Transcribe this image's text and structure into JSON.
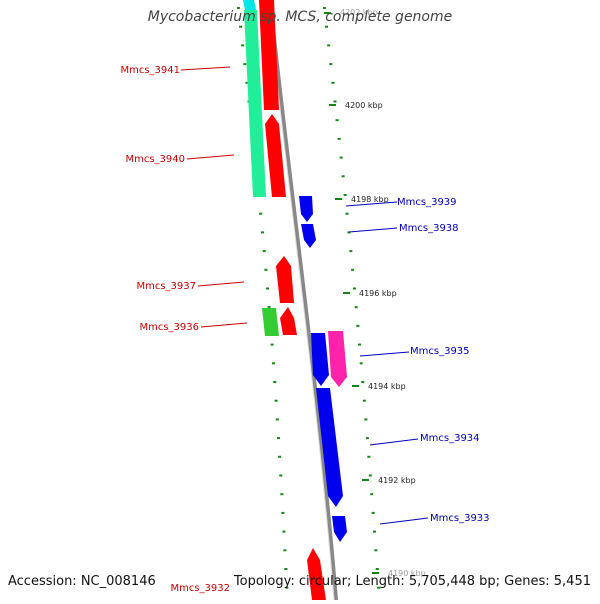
{
  "title": "Mycobacterium sp. MCS, complete genome",
  "accession_text": "Accession: NC_008146",
  "summary_text": "Topology: circular; Length: 5,705,448 bp; Genes: 5,451",
  "colors": {
    "forward_gene": "#ff0000",
    "reverse_gene": "#0000ee",
    "forward_label": "#cc0000",
    "reverse_label": "#0000bb",
    "cds_teal": "#22ee99",
    "cds_cyan": "#00e5e5",
    "cds_green": "#33cc33",
    "cds_pink": "#ff22aa",
    "backbone": "#888888",
    "tick_marks": "#118811"
  },
  "tick_labels": [
    "4202 kbp",
    "4200 kbp",
    "4198 kbp",
    "4196 kbp",
    "4194 kbp",
    "4192 kbp",
    "4190 kbp"
  ],
  "forward_genes": [
    {
      "name": "Mmcs_3941"
    },
    {
      "name": "Mmcs_3940"
    },
    {
      "name": "Mmcs_3937"
    },
    {
      "name": "Mmcs_3936"
    },
    {
      "name": "Mmcs_3932"
    }
  ],
  "reverse_genes": [
    {
      "name": "Mmcs_3939"
    },
    {
      "name": "Mmcs_3938"
    },
    {
      "name": "Mmcs_3935"
    },
    {
      "name": "Mmcs_3934"
    },
    {
      "name": "Mmcs_3933"
    }
  ]
}
